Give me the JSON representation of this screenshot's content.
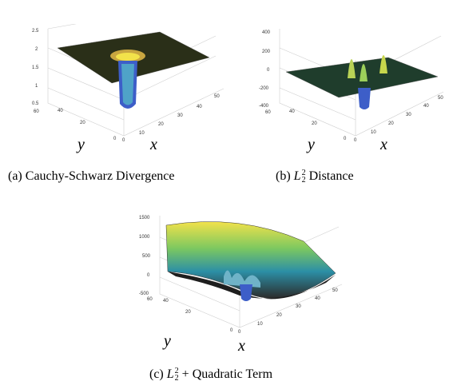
{
  "figures": [
    {
      "caption_prefix": "(a) ",
      "caption_text": "Cauchy-Schwarz Divergence",
      "x_axis_label": "x",
      "y_axis_label": "y",
      "z_ticks": [
        "2.5",
        "2",
        "1.5",
        "1",
        "0.5"
      ],
      "x_ticks": [
        "0",
        "10",
        "20",
        "30",
        "40",
        "50"
      ],
      "y_ticks": [
        "0",
        "20",
        "40",
        "60"
      ]
    },
    {
      "caption_prefix": "(b) ",
      "caption_math": "L",
      "caption_sub": "2",
      "caption_sup": "2",
      "caption_text": " Distance",
      "x_axis_label": "x",
      "y_axis_label": "y",
      "z_ticks": [
        "400",
        "200",
        "0",
        "-200",
        "-400"
      ],
      "x_ticks": [
        "0",
        "10",
        "20",
        "30",
        "40",
        "50"
      ],
      "y_ticks": [
        "0",
        "20",
        "40",
        "60"
      ]
    },
    {
      "caption_prefix": "(c) ",
      "caption_math": "L",
      "caption_sub": "2",
      "caption_sup": "2",
      "caption_text": " + Quadratic Term",
      "x_axis_label": "x",
      "y_axis_label": "y",
      "z_ticks": [
        "1500",
        "1000",
        "500",
        "0",
        "-500"
      ],
      "x_ticks": [
        "0",
        "10",
        "20",
        "30",
        "40",
        "50"
      ],
      "y_ticks": [
        "0",
        "20",
        "40",
        "60"
      ]
    }
  ],
  "colors": {
    "surface_dark": "#2a2f18",
    "surface_high": "#f2e24a",
    "surface_low": "#3a62c8",
    "grid": "#cfcfcf"
  }
}
